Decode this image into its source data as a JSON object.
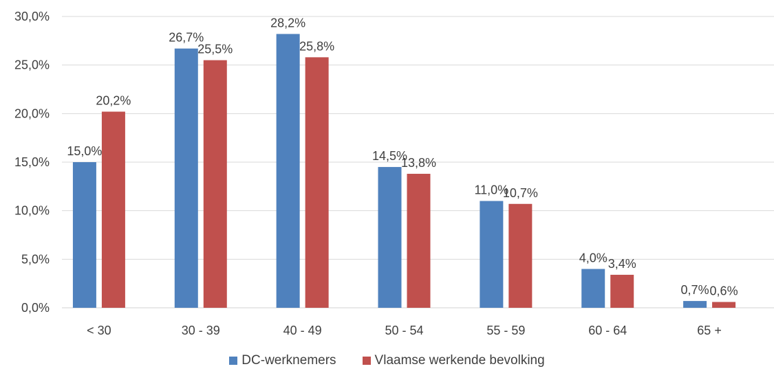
{
  "chart_data": {
    "type": "bar",
    "categories": [
      "< 30",
      "30 - 39",
      "40 - 49",
      "50 - 54",
      "55 - 59",
      "60 - 64",
      "65 +"
    ],
    "series": [
      {
        "name": "DC-werknemers",
        "color": "#4F81BD",
        "values": [
          15.0,
          26.7,
          28.2,
          14.5,
          11.0,
          4.0,
          0.7
        ],
        "labels": [
          "15,0%",
          "26,7%",
          "28,2%",
          "14,5%",
          "11,0%",
          "4,0%",
          "0,7%"
        ]
      },
      {
        "name": "Vlaamse werkende bevolking",
        "color": "#C0504D",
        "values": [
          20.2,
          25.5,
          25.8,
          13.8,
          10.7,
          3.4,
          0.6
        ],
        "labels": [
          "20,2%",
          "25,5%",
          "25,8%",
          "13,8%",
          "10,7%",
          "3,4%",
          "0,6%"
        ]
      }
    ],
    "yticks": [
      "0,0%",
      "5,0%",
      "10,0%",
      "15,0%",
      "20,0%",
      "25,0%",
      "30,0%"
    ],
    "ylim": [
      0,
      30
    ],
    "grid": true,
    "legend_position": "bottom",
    "title": "",
    "xlabel": "",
    "ylabel": ""
  },
  "legend": {
    "series_a": "DC-werknemers",
    "series_b": "Vlaamse werkende bevolking"
  }
}
